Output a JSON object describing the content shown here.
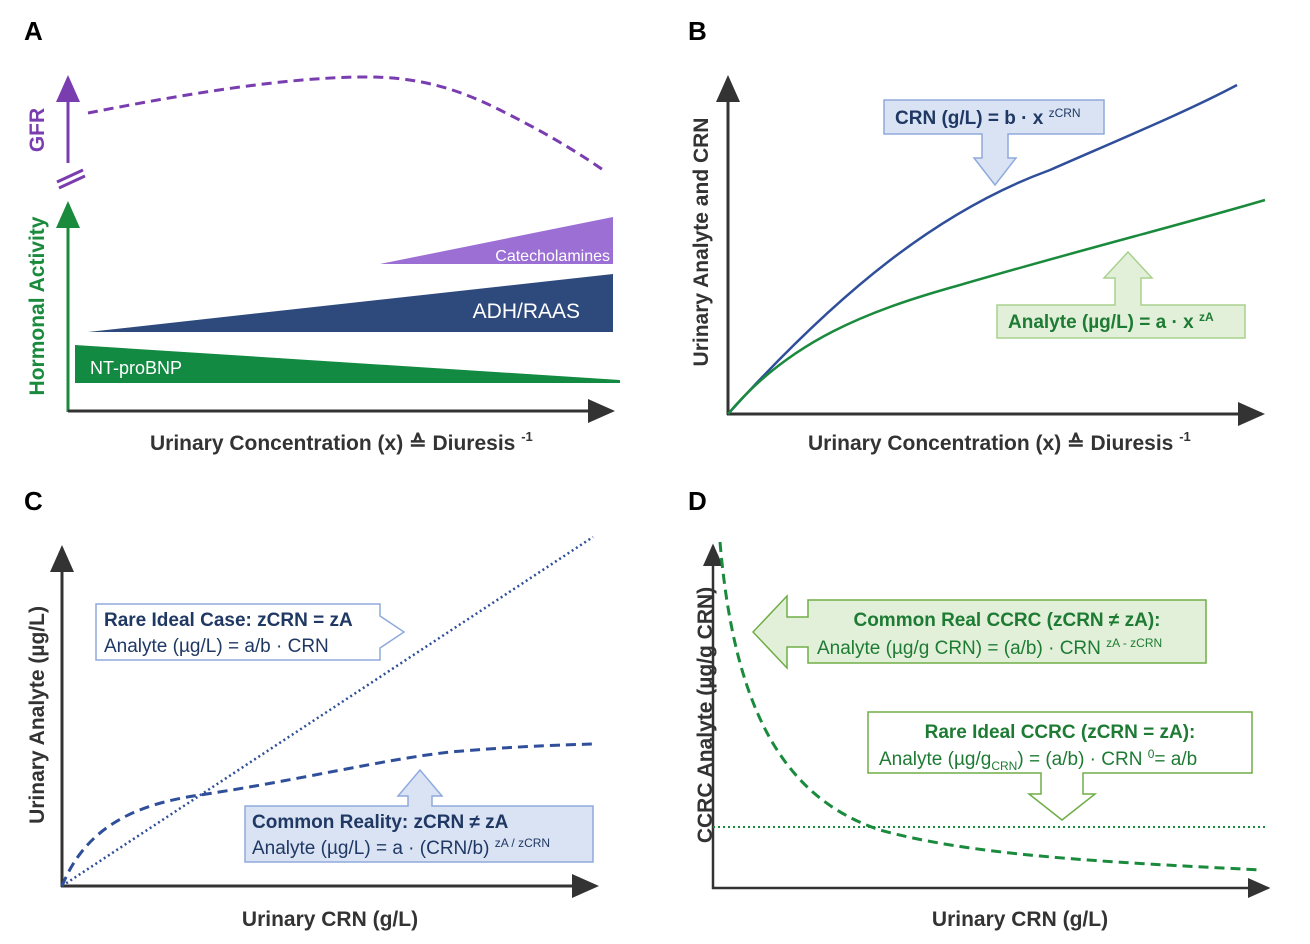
{
  "colors": {
    "purple": "#7a3db0",
    "green": "#1a8a3c",
    "navy": "#2e4a7d",
    "blue": "#2f4f9a",
    "blue_box": "#dae3f3",
    "green_box": "#e2f0d9"
  },
  "panelA": {
    "label": "A",
    "y_upper": "GFR",
    "y_lower": "Hormonal Activity",
    "x_label": "Urinary Concentration (x) ≙ Diuresis",
    "x_label_sup": "-1",
    "catecholamines": "Catecholamines",
    "adh": "ADH/RAAS",
    "ntprobnp": "NT-proBNP"
  },
  "panelB": {
    "label": "B",
    "y_label": "Urinary Analyte and CRN",
    "x_label": "Urinary Concentration (x) ≙ Diuresis",
    "x_label_sup": "-1",
    "crn_eq": "CRN (g/L) = b · x",
    "crn_sup": "zCRN",
    "analyte_eq": "Analyte (µg/L) = a · x",
    "analyte_sup": "zA"
  },
  "panelC": {
    "label": "C",
    "y_label": "Urinary Analyte (µg/L)",
    "x_label": "Urinary CRN (g/L)",
    "ideal_title": "Rare Ideal Case: zCRN = zA",
    "ideal_eq": "Analyte (µg/L) = a/b · CRN",
    "common_title": "Common Reality: zCRN ≠ zA",
    "common_eq": "Analyte (µg/L) = a · (CRN/b)",
    "common_sup": "zA / zCRN"
  },
  "panelD": {
    "label": "D",
    "y_label": "CCRC  Analyte (µg/g CRN)",
    "x_label": "Urinary CRN (g/L)",
    "common_title": "Common Real CCRC (zCRN ≠ zA):",
    "common_eq": "Analyte (µg/g CRN) = (a/b) · CRN",
    "common_sup": "zA - zCRN",
    "ideal_title": "Rare Ideal CCRC (zCRN = zA):",
    "ideal_eq_a": "Analyte (µg/g",
    "ideal_eq_sub": "CRN",
    "ideal_eq_b": ") = (a/b) · CRN",
    "ideal_eq_sup": "0",
    "ideal_eq_c": "= a/b"
  }
}
